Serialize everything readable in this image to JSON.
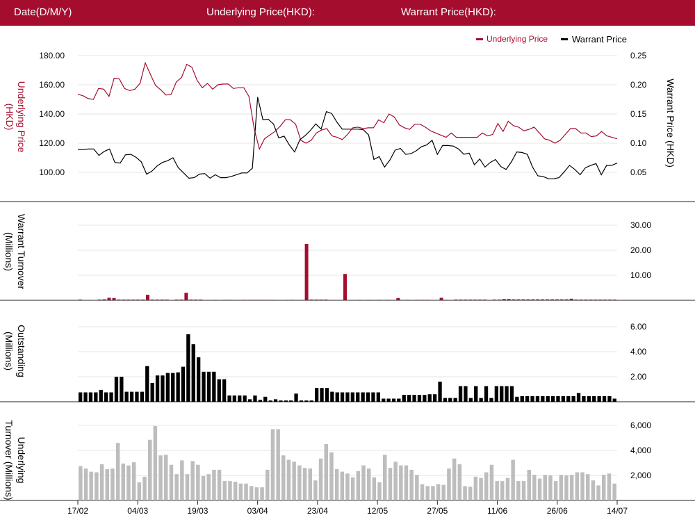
{
  "header": {
    "date_label": "Date(D/M/Y)",
    "underlying_label": "Underlying Price(HKD):",
    "warrant_label": "Warrant Price(HKD):"
  },
  "colors": {
    "header_bg": "#a50d2f",
    "underlying": "#a50d2f",
    "warrant": "#000000",
    "underlying_turnover": "#bdbdbd",
    "grid": "#e6e6e6"
  },
  "chart_data": [
    {
      "type": "line",
      "legend": [
        "Underlying Price",
        "Warrant Price"
      ],
      "legend_position": "top-right",
      "y_left_label": "Underlying Price (HKD)",
      "y_right_label": "Warrant  Price (HKD)",
      "y_left_ticks": [
        "100.00",
        "120.00",
        "140.00",
        "160.00",
        "180.00"
      ],
      "y_right_ticks": [
        "0.05",
        "0.10",
        "0.15",
        "0.20",
        "0.25"
      ],
      "ylim_left": [
        90,
        185
      ],
      "ylim_right": [
        0.02,
        0.26
      ],
      "grid": true,
      "series": [
        {
          "name": "Underlying Price",
          "axis": "left",
          "color": "#a50d2f",
          "values": [
            153.5,
            152.5,
            150.5,
            150,
            157.5,
            157,
            152,
            164.5,
            164,
            157.5,
            156,
            157,
            161,
            175,
            167,
            159.5,
            156.5,
            153,
            153.5,
            162,
            165,
            174,
            172,
            163,
            158,
            161,
            157,
            160,
            160.5,
            160.5,
            157.5,
            158,
            158,
            152,
            130,
            116,
            123,
            125.5,
            128,
            131.5,
            136,
            136,
            133,
            122,
            120,
            122,
            127,
            129,
            130,
            125,
            124,
            122.5,
            126,
            130.5,
            131,
            130,
            130.5,
            130.5,
            136,
            134,
            140,
            138,
            132.5,
            130.5,
            129.5,
            133,
            133,
            131,
            128.5,
            127,
            125.5,
            124,
            127,
            124,
            124,
            124,
            124,
            124,
            127,
            125,
            126,
            133.5,
            128,
            135,
            132,
            131,
            128.5,
            129.5,
            131,
            127,
            123,
            122,
            120,
            122,
            126,
            130,
            130,
            127,
            127,
            124.5,
            125,
            128,
            125,
            124,
            123
          ]
        },
        {
          "name": "Warrant Price",
          "axis": "right",
          "color": "#000000",
          "values": [
            0.089,
            0.089,
            0.09,
            0.09,
            0.079,
            0.086,
            0.09,
            0.067,
            0.066,
            0.08,
            0.081,
            0.076,
            0.068,
            0.047,
            0.052,
            0.061,
            0.067,
            0.07,
            0.075,
            0.058,
            0.049,
            0.04,
            0.041,
            0.047,
            0.048,
            0.04,
            0.046,
            0.041,
            0.041,
            0.043,
            0.046,
            0.049,
            0.049,
            0.057,
            0.179,
            0.14,
            0.141,
            0.133,
            0.109,
            0.112,
            0.097,
            0.085,
            0.106,
            0.113,
            0.122,
            0.133,
            0.124,
            0.154,
            0.151,
            0.136,
            0.124,
            0.124,
            0.124,
            0.124,
            0.123,
            0.114,
            0.072,
            0.077,
            0.059,
            0.071,
            0.088,
            0.091,
            0.081,
            0.082,
            0.087,
            0.094,
            0.097,
            0.105,
            0.081,
            0.096,
            0.096,
            0.095,
            0.09,
            0.081,
            0.083,
            0.063,
            0.073,
            0.059,
            0.067,
            0.072,
            0.06,
            0.055,
            0.068,
            0.085,
            0.084,
            0.081,
            0.059,
            0.044,
            0.043,
            0.039,
            0.039,
            0.041,
            0.051,
            0.062,
            0.055,
            0.046,
            0.058,
            0.062,
            0.065,
            0.046,
            0.062,
            0.062,
            0.066
          ]
        }
      ]
    },
    {
      "type": "bar",
      "ylabel": "Warrant  Turnover (Millions)",
      "y_ticks": [
        "10.00",
        "20.00",
        "30.00"
      ],
      "ylim": [
        0,
        32
      ],
      "color": "#a50d2f",
      "values": [
        0.3,
        0,
        0,
        0.1,
        0.3,
        0.4,
        1,
        0.9,
        0.3,
        0.3,
        0.3,
        0.3,
        0.3,
        0.3,
        2.2,
        0.3,
        0.3,
        0.3,
        0.3,
        0.1,
        0.3,
        0.3,
        3,
        0.3,
        0.3,
        0.3,
        0,
        0,
        0.2,
        0,
        0.2,
        0.2,
        0,
        0,
        0.2,
        0.2,
        0.2,
        0.2,
        0.2,
        0.2,
        0.2,
        0,
        0,
        0.2,
        0.2,
        0,
        0,
        22.5,
        0.3,
        0.3,
        0.3,
        0.3,
        0,
        0,
        0,
        10.5,
        0,
        0,
        0.2,
        0,
        0.2,
        0,
        0.2,
        0,
        0.2,
        0,
        0.9,
        0,
        0.2,
        0,
        0.2,
        0.2,
        0.2,
        0,
        0,
        1,
        0.2,
        0,
        0.3,
        0.3,
        0.3,
        0.3,
        0.3,
        0.3,
        0.3,
        0,
        0.3,
        0.3,
        0.5,
        0.5,
        0.4,
        0.4,
        0.4,
        0.4,
        0.4,
        0.4,
        0.4,
        0.4,
        0.4,
        0.4,
        0.4,
        0.4,
        0.6,
        0.3,
        0.3,
        0.3,
        0.3,
        0.3,
        0.3,
        0.3,
        0.3,
        0.3
      ]
    },
    {
      "type": "bar",
      "ylabel": "Outstanding (Millions)",
      "y_ticks": [
        "2.00",
        "4.00",
        "6.00"
      ],
      "ylim": [
        0,
        6.5
      ],
      "color": "#000000",
      "values": [
        0.75,
        0.75,
        0.75,
        0.75,
        0.95,
        0.75,
        0.75,
        2,
        2,
        0.8,
        0.8,
        0.8,
        0.8,
        2.85,
        1.5,
        2.1,
        2.1,
        2.3,
        2.3,
        2.35,
        2.8,
        5.4,
        4.6,
        3.55,
        2.4,
        2.4,
        2.4,
        1.8,
        1.8,
        0.5,
        0.5,
        0.5,
        0.5,
        0.2,
        0.5,
        0.15,
        0.4,
        0.1,
        0.2,
        0.1,
        0.1,
        0.1,
        0.65,
        0.1,
        0.1,
        0.1,
        1.1,
        1.1,
        1.1,
        0.8,
        0.75,
        0.75,
        0.75,
        0.75,
        0.75,
        0.75,
        0.75,
        0.75,
        0.75,
        0.25,
        0.25,
        0.25,
        0.25,
        0.55,
        0.55,
        0.55,
        0.55,
        0.55,
        0.6,
        0.6,
        1.6,
        0.3,
        0.3,
        0.3,
        1.25,
        1.25,
        0.3,
        1.25,
        0.3,
        1.25,
        0.3,
        1.25,
        1.25,
        1.25,
        1.25,
        0.4,
        0.45,
        0.45,
        0.45,
        0.45,
        0.45,
        0.45,
        0.45,
        0.45,
        0.45,
        0.45,
        0.45,
        0.7,
        0.45,
        0.45,
        0.45,
        0.45,
        0.45,
        0.45,
        0.25
      ]
    },
    {
      "type": "bar",
      "ylabel": "Underlying Turnover (Millions)",
      "y_ticks": [
        "2,000",
        "4,000",
        "6,000"
      ],
      "ylim": [
        0,
        6600
      ],
      "color": "#bdbdbd",
      "values": [
        2750,
        2550,
        2300,
        2250,
        2900,
        2500,
        2550,
        4600,
        2950,
        2800,
        3050,
        1450,
        1900,
        4850,
        5950,
        3600,
        3650,
        2850,
        2100,
        3200,
        2100,
        3150,
        2850,
        1950,
        2100,
        2450,
        2450,
        1550,
        1550,
        1500,
        1350,
        1350,
        1150,
        1050,
        1050,
        2450,
        5700,
        5700,
        3600,
        3250,
        3100,
        2800,
        2600,
        2550,
        1600,
        3350,
        4500,
        3850,
        2500,
        2300,
        2150,
        1850,
        2350,
        2800,
        2550,
        1850,
        1450,
        3650,
        2600,
        3100,
        2800,
        2800,
        2450,
        2050,
        1300,
        1150,
        1150,
        1300,
        1250,
        2550,
        3350,
        2900,
        1150,
        1100,
        1900,
        1800,
        2250,
        2850,
        1550,
        1550,
        1800,
        3250,
        1550,
        1550,
        2450,
        2050,
        1750,
        2050,
        2000,
        1550,
        2050,
        2000,
        2050,
        2250,
        2250,
        2100,
        1600,
        1200,
        2050,
        2150,
        1350
      ]
    }
  ],
  "x_ticks": [
    "17/02",
    "04/03",
    "19/03",
    "03/04",
    "23/04",
    "12/05",
    "27/05",
    "11/06",
    "26/06",
    "14/07"
  ]
}
